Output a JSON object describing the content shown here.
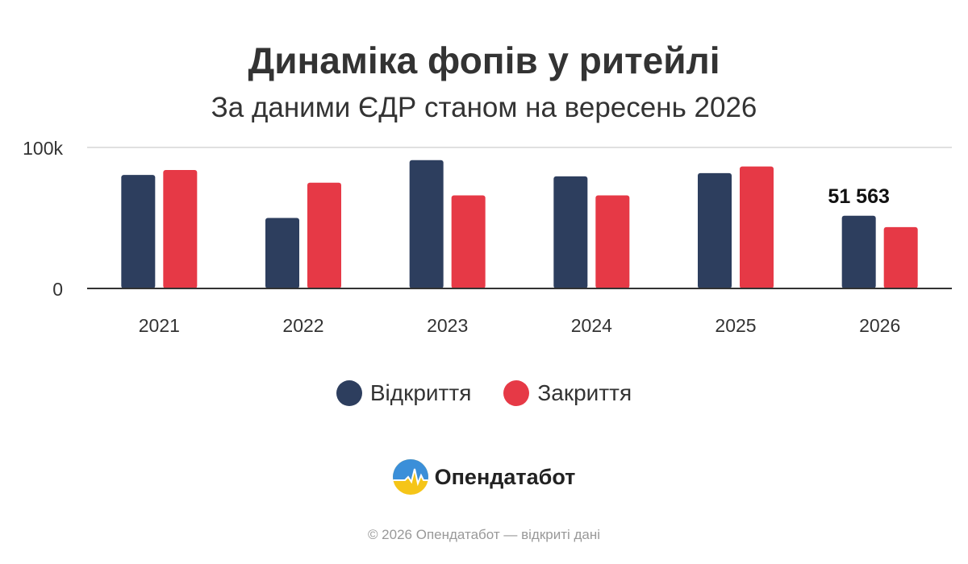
{
  "colors": {
    "opening": "#2d3e5e",
    "closing": "#e63946",
    "axis": "#333333",
    "grid": "#e0e0e0",
    "text": "#333333"
  },
  "chart_data": {
    "type": "bar",
    "title": "Динаміка фопів у ритейлі",
    "subtitle": "За даними ЄДР станом на вересень 2026",
    "categories": [
      "2021",
      "2022",
      "2023",
      "2024",
      "2025",
      "2026"
    ],
    "series": [
      {
        "name": "Відкриття",
        "values": [
          80500,
          50000,
          91000,
          79500,
          81800,
          51563
        ]
      },
      {
        "name": "Закриття",
        "values": [
          84000,
          75000,
          66000,
          66000,
          86500,
          43500
        ]
      }
    ],
    "ylim": [
      0,
      100000
    ],
    "yticks": [
      {
        "value": 0,
        "label": "0"
      },
      {
        "value": 100000,
        "label": "100k"
      }
    ],
    "data_labels": [
      {
        "series": 0,
        "index": 5,
        "text": "51 563"
      }
    ],
    "grid": true,
    "legend": "bottom",
    "xlabel": "",
    "ylabel": ""
  },
  "legend": {
    "items": [
      {
        "label": "Відкриття",
        "color_key": "opening"
      },
      {
        "label": "Закриття",
        "color_key": "closing"
      }
    ]
  },
  "brand": {
    "name": "Опендатабот",
    "icon": "opendatabot-logo-icon"
  },
  "footer": {
    "text": "© 2026 Опендатабот — відкриті дані"
  }
}
